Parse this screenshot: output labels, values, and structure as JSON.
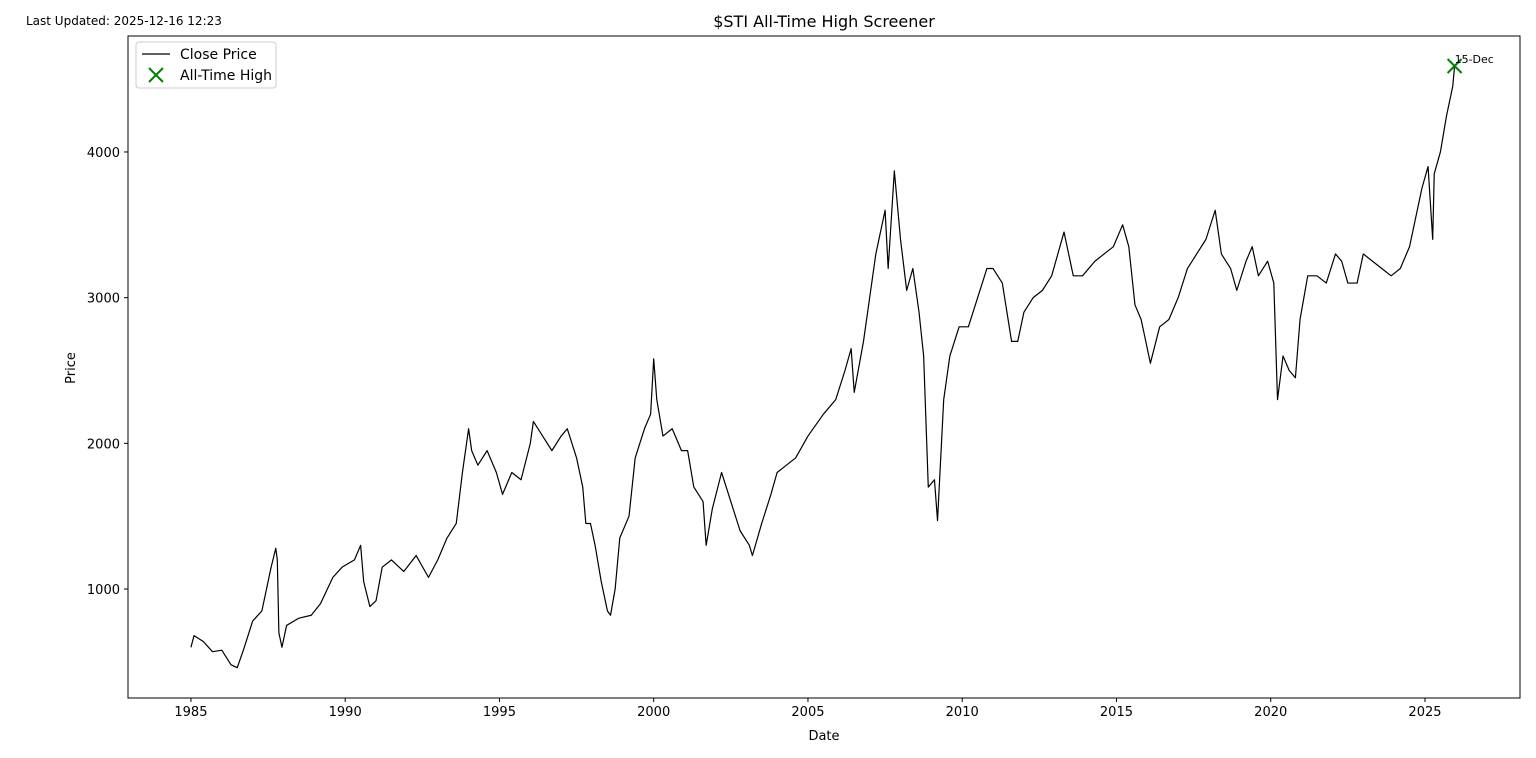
{
  "chart_data": {
    "type": "line",
    "title": "$STI All-Time High Screener",
    "note": "Last Updated: 2025-12-16 12:23",
    "xlabel": "Date",
    "ylabel": "Price",
    "xlim": [
      1982.96,
      2028.08
    ],
    "ylim": [
      252,
      4796
    ],
    "xticks": [
      1985,
      1990,
      1995,
      2000,
      2005,
      2010,
      2015,
      2020,
      2025
    ],
    "yticks": [
      1000,
      2000,
      3000,
      4000
    ],
    "legend": "upper left",
    "series": [
      {
        "name": "Close Price",
        "color": "#000000",
        "type": "line",
        "x": [
          1985.0,
          1985.1,
          1985.4,
          1985.7,
          1986.0,
          1986.3,
          1986.5,
          1986.7,
          1987.0,
          1987.3,
          1987.6,
          1987.75,
          1987.8,
          1987.85,
          1987.95,
          1988.1,
          1988.5,
          1988.9,
          1989.2,
          1989.6,
          1989.9,
          1990.3,
          1990.5,
          1990.6,
          1990.8,
          1991.0,
          1991.2,
          1991.5,
          1991.9,
          1992.3,
          1992.7,
          1993.0,
          1993.3,
          1993.6,
          1993.8,
          1994.0,
          1994.1,
          1994.3,
          1994.6,
          1994.9,
          1995.1,
          1995.4,
          1995.7,
          1996.0,
          1996.1,
          1996.4,
          1996.7,
          1997.0,
          1997.2,
          1997.5,
          1997.7,
          1997.8,
          1997.95,
          1998.1,
          1998.3,
          1998.5,
          1998.6,
          1998.75,
          1998.9,
          1999.2,
          1999.4,
          1999.7,
          1999.9,
          2000.0,
          2000.1,
          2000.3,
          2000.6,
          2000.9,
          2001.1,
          2001.3,
          2001.6,
          2001.7,
          2001.9,
          2002.2,
          2002.5,
          2002.8,
          2003.1,
          2003.2,
          2003.5,
          2003.8,
          2004.0,
          2004.3,
          2004.6,
          2005.0,
          2005.5,
          2005.9,
          2006.2,
          2006.4,
          2006.5,
          2006.8,
          2007.0,
          2007.2,
          2007.5,
          2007.6,
          2007.8,
          2008.0,
          2008.2,
          2008.4,
          2008.6,
          2008.75,
          2008.9,
          2009.1,
          2009.2,
          2009.4,
          2009.6,
          2009.9,
          2010.2,
          2010.5,
          2010.8,
          2011.0,
          2011.3,
          2011.6,
          2011.8,
          2012.0,
          2012.3,
          2012.6,
          2012.9,
          2013.3,
          2013.6,
          2013.9,
          2014.3,
          2014.6,
          2014.9,
          2015.2,
          2015.4,
          2015.6,
          2015.8,
          2016.1,
          2016.4,
          2016.7,
          2017.0,
          2017.3,
          2017.6,
          2017.9,
          2018.2,
          2018.4,
          2018.7,
          2018.9,
          2019.2,
          2019.4,
          2019.6,
          2019.9,
          2020.1,
          2020.22,
          2020.4,
          2020.6,
          2020.8,
          2020.95,
          2021.2,
          2021.5,
          2021.8,
          2022.1,
          2022.3,
          2022.5,
          2022.8,
          2023.0,
          2023.3,
          2023.6,
          2023.9,
          2024.2,
          2024.5,
          2024.7,
          2024.9,
          2025.1,
          2025.25,
          2025.3,
          2025.5,
          2025.7,
          2025.9,
          2025.96
        ],
        "values": [
          600,
          680,
          640,
          570,
          580,
          480,
          460,
          580,
          780,
          850,
          1150,
          1280,
          1200,
          700,
          600,
          750,
          800,
          820,
          900,
          1080,
          1150,
          1200,
          1300,
          1050,
          880,
          920,
          1150,
          1200,
          1120,
          1230,
          1080,
          1200,
          1350,
          1450,
          1800,
          2100,
          1950,
          1850,
          1950,
          1800,
          1650,
          1800,
          1750,
          2000,
          2150,
          2050,
          1950,
          2050,
          2100,
          1900,
          1700,
          1450,
          1450,
          1300,
          1050,
          850,
          820,
          1000,
          1350,
          1500,
          1900,
          2100,
          2200,
          2580,
          2300,
          2050,
          2100,
          1950,
          1950,
          1700,
          1600,
          1300,
          1550,
          1800,
          1600,
          1400,
          1300,
          1230,
          1450,
          1650,
          1800,
          1850,
          1900,
          2050,
          2200,
          2300,
          2500,
          2650,
          2350,
          2700,
          3000,
          3300,
          3600,
          3200,
          3870,
          3400,
          3050,
          3200,
          2900,
          2600,
          1700,
          1750,
          1470,
          2300,
          2600,
          2800,
          2800,
          3000,
          3200,
          3200,
          3100,
          2700,
          2700,
          2900,
          3000,
          3050,
          3150,
          3450,
          3150,
          3150,
          3250,
          3300,
          3350,
          3500,
          3350,
          2950,
          2850,
          2550,
          2800,
          2850,
          3000,
          3200,
          3300,
          3400,
          3600,
          3300,
          3200,
          3050,
          3250,
          3350,
          3150,
          3250,
          3100,
          2300,
          2600,
          2500,
          2450,
          2850,
          3150,
          3150,
          3100,
          3300,
          3250,
          3100,
          3100,
          3300,
          3250,
          3200,
          3150,
          3200,
          3350,
          3550,
          3750,
          3900,
          3400,
          3850,
          4000,
          4250,
          4450,
          4590
        ]
      },
      {
        "name": "All-Time High",
        "color": "#008000",
        "type": "scatter",
        "marker": "x",
        "x": [
          2025.96
        ],
        "values": [
          4590
        ]
      }
    ],
    "annotations": [
      {
        "text": "15-Dec",
        "series": 1,
        "point": 0
      }
    ]
  }
}
